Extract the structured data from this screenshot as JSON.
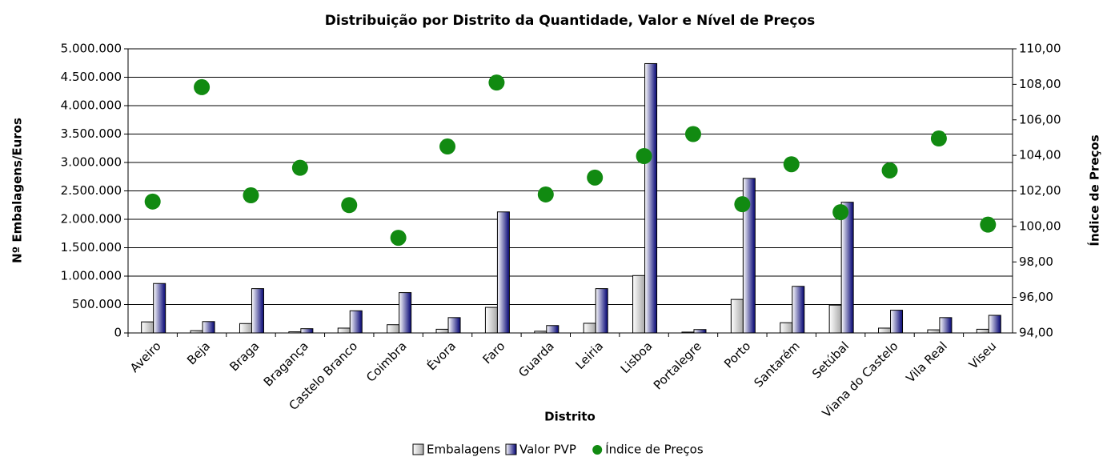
{
  "chart_data": {
    "type": "bar",
    "title": "Distribuição por Distrito da Quantidade, Valor e Nível de Preços",
    "x_label": "Distrito",
    "y_label": "Nº Embalagens/Euros",
    "y2_label": "Índice de Preços",
    "categories": [
      "Aveiro",
      "Beja",
      "Braga",
      "Bragança",
      "Castelo Branco",
      "Coimbra",
      "Évora",
      "Faro",
      "Guarda",
      "Leiria",
      "Lisboa",
      "Portalegre",
      "Porto",
      "Santarém",
      "Setúbal",
      "Viana do Castelo",
      "Vila Real",
      "Viseu"
    ],
    "series": [
      {
        "name": "Embalagens",
        "type": "bar",
        "color": "#b0b0b0",
        "values": [
          195000,
          40000,
          165000,
          20000,
          85000,
          145000,
          65000,
          450000,
          30000,
          170000,
          1010000,
          15000,
          590000,
          180000,
          490000,
          85000,
          55000,
          65000
        ]
      },
      {
        "name": "Valor PVP",
        "type": "bar",
        "color": "#1a1a80",
        "values": [
          870000,
          200000,
          780000,
          75000,
          390000,
          710000,
          270000,
          2130000,
          130000,
          780000,
          4740000,
          60000,
          2720000,
          820000,
          2300000,
          400000,
          270000,
          310000
        ]
      },
      {
        "name": "Índice de Preços",
        "type": "scatter",
        "axis": "y2",
        "color": "#118a11",
        "values": [
          101.4,
          107.84,
          101.75,
          103.3,
          101.2,
          99.36,
          104.5,
          108.1,
          101.8,
          102.75,
          103.96,
          105.2,
          101.25,
          103.5,
          100.8,
          103.15,
          104.95,
          100.1
        ]
      }
    ],
    "ylim": [
      0,
      5000000
    ],
    "yticks": [
      0,
      {
        "value": 500000,
        "label": "500.000"
      },
      {
        "value": 1000000,
        "label": "1.000.000"
      },
      {
        "value": 1500000,
        "label": "1.500.000"
      },
      {
        "value": 2000000,
        "label": "2.000.000"
      },
      {
        "value": 2500000,
        "label": "2.500.000"
      },
      {
        "value": 3000000,
        "label": "3.000.000"
      },
      {
        "value": 3500000,
        "label": "3.500.000"
      },
      {
        "value": 4000000,
        "label": "4.000.000"
      },
      {
        "value": 4500000,
        "label": "4.500.000"
      },
      {
        "value": 5000000,
        "label": "5.000.000"
      }
    ],
    "y2lim": [
      94,
      110
    ],
    "y2ticks": [
      {
        "value": 94,
        "label": "94,00"
      },
      {
        "value": 96,
        "label": "96,00"
      },
      {
        "value": 98,
        "label": "98,00"
      },
      {
        "value": 100,
        "label": "100,00"
      },
      {
        "value": 102,
        "label": "102,00"
      },
      {
        "value": 104,
        "label": "104,00"
      },
      {
        "value": 106,
        "label": "106,00"
      },
      {
        "value": 108,
        "label": "108,00"
      },
      {
        "value": 110,
        "label": "110,00"
      }
    ],
    "grid": true,
    "legend": "bottom"
  }
}
